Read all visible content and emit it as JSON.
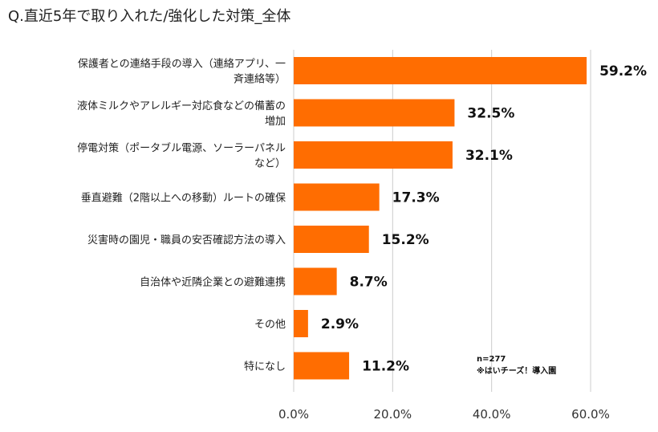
{
  "chart_data": {
    "type": "bar",
    "orientation": "horizontal",
    "title": "Q.直近5年で取り入れた/強化した対策_全体",
    "categories": [
      [
        "保護者との連絡手段の導入（連絡アプリ、一",
        "斉連絡等）"
      ],
      [
        "液体ミルクやアレルギー対応食などの備蓄の",
        "増加"
      ],
      [
        "停電対策（ポータブル電源、ソーラーパネル",
        "など）"
      ],
      [
        "垂直避難（2階以上への移動）ルートの確保"
      ],
      [
        "災害時の園児・職員の安否確認方法の導入"
      ],
      [
        "自治体や近隣企業との避難連携"
      ],
      [
        "その他"
      ],
      [
        "特になし"
      ]
    ],
    "values": [
      59.2,
      32.5,
      32.1,
      17.3,
      15.2,
      8.7,
      2.9,
      11.2
    ],
    "value_labels": [
      "59.2%",
      "32.5%",
      "32.1%",
      "17.3%",
      "15.2%",
      "8.7%",
      "2.9%",
      "11.2%"
    ],
    "xlim": [
      0,
      60
    ],
    "ticks": [
      0,
      20,
      40,
      60
    ],
    "tick_labels": [
      "0.0%",
      "20.0%",
      "40.0%",
      "60.0%"
    ],
    "bar_color": "#FF6D01",
    "grid_color": "#cccccc",
    "xlabel": "",
    "ylabel": ""
  },
  "note": {
    "sample": "n=277",
    "source": "※はいチーズ！導入園"
  }
}
